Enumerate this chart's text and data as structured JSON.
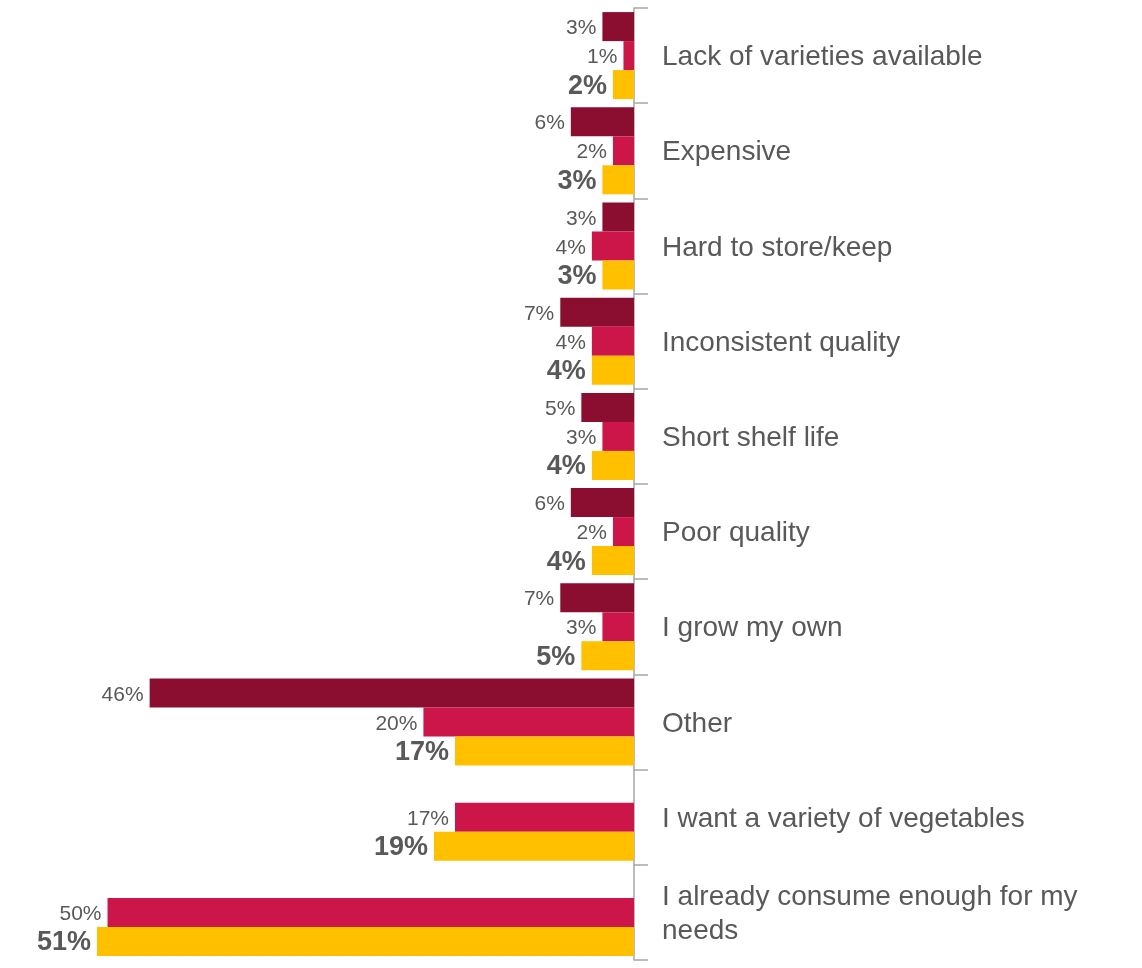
{
  "chart_data": {
    "type": "bar",
    "orientation": "horizontal",
    "categories": [
      "Lack of varieties available",
      "Expensive",
      "Hard to store/keep",
      "Inconsistent quality",
      "Short shelf life",
      "Poor quality",
      "I grow my own",
      "Other",
      "I want a variety of vegetables",
      "I already consume enough for my needs"
    ],
    "series": [
      {
        "color": "#8b0d2f",
        "values": [
          3,
          6,
          3,
          7,
          5,
          6,
          7,
          46,
          null,
          null
        ],
        "value_labels": [
          "3%",
          "6%",
          "3%",
          "7%",
          "5%",
          "6%",
          "7%",
          "46%",
          null,
          null
        ]
      },
      {
        "color": "#cc1548",
        "values": [
          1,
          2,
          4,
          4,
          3,
          2,
          3,
          20,
          17,
          50
        ],
        "value_labels": [
          "1%",
          "2%",
          "4%",
          "4%",
          "3%",
          "2%",
          "3%",
          "20%",
          "17%",
          "50%"
        ]
      },
      {
        "color": "#ffc000",
        "values": [
          2,
          3,
          3,
          4,
          4,
          4,
          5,
          17,
          19,
          51
        ],
        "value_labels": [
          "2%",
          "3%",
          "3%",
          "4%",
          "4%",
          "4%",
          "5%",
          "17%",
          "19%",
          "51%"
        ]
      }
    ]
  }
}
